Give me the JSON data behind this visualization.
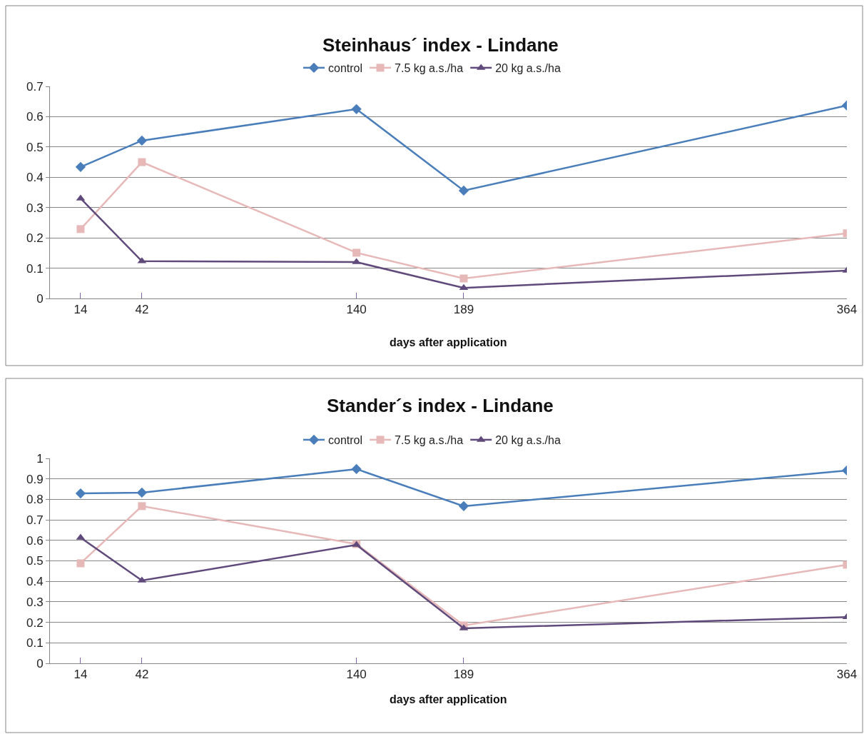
{
  "chart_data": [
    {
      "type": "line",
      "title": "Steinhaus´ index - Lindane",
      "xlabel": "days after application",
      "x": [
        14,
        42,
        140,
        189,
        364
      ],
      "xlim": [
        0,
        364
      ],
      "xticks": [
        14,
        42,
        140,
        189,
        364
      ],
      "ylim": [
        0,
        0.7
      ],
      "yticks": [
        0,
        0.1,
        0.2,
        0.3,
        0.4,
        0.5,
        0.6,
        0.7
      ],
      "grid": "y",
      "legend": "top",
      "series": [
        {
          "name": "control",
          "color": "#4a7ebb",
          "marker": "diamond",
          "values": [
            0.434,
            0.521,
            0.625,
            0.356,
            0.637
          ]
        },
        {
          "name": "7.5 kg a.s./ha",
          "color": "#e6b9b8",
          "marker": "square",
          "values": [
            0.229,
            0.45,
            0.151,
            0.066,
            0.215
          ]
        },
        {
          "name": "20 kg a.s./ha",
          "color": "#604a7b",
          "marker": "triangle",
          "values": [
            0.33,
            0.123,
            0.12,
            0.035,
            0.092
          ]
        }
      ]
    },
    {
      "type": "line",
      "title": "Stander´s index - Lindane",
      "xlabel": "days after application",
      "x": [
        14,
        42,
        140,
        189,
        364
      ],
      "xlim": [
        0,
        364
      ],
      "xticks": [
        14,
        42,
        140,
        189,
        364
      ],
      "ylim": [
        0,
        1
      ],
      "yticks": [
        0,
        0.1,
        0.2,
        0.3,
        0.4,
        0.5,
        0.6,
        0.7,
        0.8,
        0.9,
        1
      ],
      "grid": "y",
      "legend": "top",
      "series": [
        {
          "name": "control",
          "color": "#4a7ebb",
          "marker": "diamond",
          "values": [
            0.829,
            0.833,
            0.948,
            0.767,
            0.941
          ]
        },
        {
          "name": "7.5 kg a.s./ha",
          "color": "#e6b9b8",
          "marker": "square",
          "values": [
            0.488,
            0.767,
            0.582,
            0.185,
            0.481
          ]
        },
        {
          "name": "20 kg a.s./ha",
          "color": "#604a7b",
          "marker": "triangle",
          "values": [
            0.613,
            0.404,
            0.578,
            0.171,
            0.226
          ]
        }
      ]
    }
  ]
}
